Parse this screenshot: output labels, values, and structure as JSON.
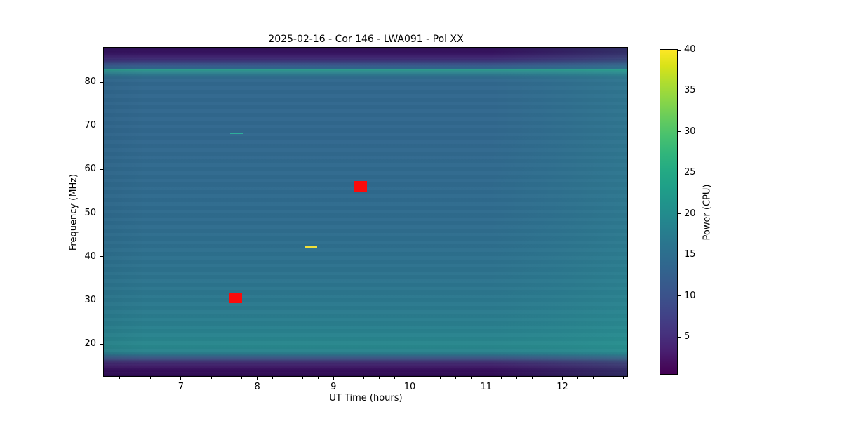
{
  "figure": {
    "background_color": "#ffffff",
    "text_color": "#000000"
  },
  "chart_data": {
    "type": "heatmap",
    "title": "2025-02-16 - Cor 146 - LWA091 - Pol XX",
    "xlabel": "UT Time (hours)",
    "ylabel": "Frequency (MHz)",
    "colorbar_label": "Power (CPU)",
    "colormap": "viridis",
    "x_range": [
      5.99,
      12.85
    ],
    "y_range": [
      12.6,
      87.9
    ],
    "x_ticks": [
      7,
      8,
      9,
      10,
      11,
      12
    ],
    "x_minor_step": 0.2,
    "y_ticks": [
      20,
      30,
      40,
      50,
      60,
      70,
      80
    ],
    "colorbar_range": [
      0.5,
      40
    ],
    "colorbar_ticks": [
      5,
      10,
      15,
      20,
      25,
      30,
      35,
      40
    ],
    "grid": false,
    "legend": "none",
    "heatmap_summary": {
      "description": "Dynamic spectrum (spectrogram) of LWA091 station power vs UT time and frequency, polarization XX",
      "bands": [
        {
          "freq_range_mhz": [
            85,
            88
          ],
          "power_cpu": "1-4",
          "appearance": "dark purple band at top edge"
        },
        {
          "freq_mhz": 83,
          "power_cpu": "22-24",
          "appearance": "bright teal horizontal line across all times"
        },
        {
          "freq_range_mhz": [
            30,
            82
          ],
          "power_cpu": "14-17",
          "appearance": "uniform blue-teal body, slightly greener toward later times"
        },
        {
          "freq_range_mhz": [
            18,
            29
          ],
          "power_cpu": "17-19",
          "appearance": "teal band, greener after 12 UT"
        },
        {
          "freq_range_mhz": [
            13,
            16
          ],
          "power_cpu": "1-5",
          "appearance": "dark purple band at bottom edge"
        }
      ]
    },
    "markers": [
      {
        "kind": "square",
        "time": 9.36,
        "freq": 56.0,
        "w": 18,
        "h": 16,
        "color": "#fb0b0b",
        "meaning": "flagged point"
      },
      {
        "kind": "square",
        "time": 7.72,
        "freq": 30.6,
        "w": 18,
        "h": 15,
        "color": "#fb0b0b",
        "meaning": "flagged point"
      },
      {
        "kind": "dash",
        "time": 7.73,
        "freq": 68.3,
        "w": 19,
        "h": 2,
        "color": "#2fae9b",
        "meaning": "narrowband feature"
      },
      {
        "kind": "dash",
        "time": 8.7,
        "freq": 42.2,
        "w": 18,
        "h": 2,
        "color": "#f2e13a",
        "meaning": "narrowband feature"
      }
    ]
  }
}
